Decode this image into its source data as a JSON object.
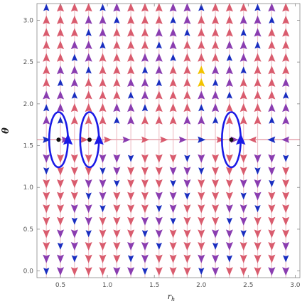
{
  "chart_data": {
    "type": "vector-field",
    "title": "",
    "xlabel": "r",
    "xlabel_subscript": "h",
    "ylabel": "θ",
    "xlim": [
      0.25,
      3.05
    ],
    "ylim": [
      -0.08,
      3.2
    ],
    "x_ticks": [
      0.5,
      1.0,
      1.5,
      2.0,
      2.5,
      3.0
    ],
    "x_tick_labels": [
      "0.5",
      "1.0",
      "1.5",
      "2.0",
      "2.5",
      "3.0"
    ],
    "y_ticks": [
      0.0,
      0.5,
      1.0,
      1.5,
      2.0,
      2.5,
      3.0
    ],
    "y_tick_labels": [
      "0.0",
      "0.5",
      "1.0",
      "1.5",
      "2.0",
      "2.5",
      "3.0"
    ],
    "equator_theta": 1.5708,
    "field_x_columns": [
      0.35,
      0.5,
      0.65,
      0.8,
      0.95,
      1.1,
      1.25,
      1.4,
      1.55,
      1.7,
      1.85,
      2.0,
      2.15,
      2.3,
      2.45,
      2.6,
      2.75,
      2.9
    ],
    "field_theta_rows": [
      0.0,
      0.15,
      0.3,
      0.45,
      0.6,
      0.75,
      0.9,
      1.05,
      1.2,
      1.35,
      1.8,
      1.95,
      2.1,
      2.25,
      2.4,
      2.55,
      2.7,
      2.85,
      3.0,
      3.15
    ],
    "field_colors": {
      "weak": "#d95c6e",
      "mid": "#8a3db0",
      "strong": "#1a2ec0",
      "highlight": "#f2c300"
    },
    "horizontal_line_arrows": {
      "theta": 1.5708,
      "x": [
        0.35,
        0.55,
        0.75,
        1.0,
        1.2,
        1.4,
        1.6,
        1.8,
        2.0,
        2.2,
        2.35,
        2.55,
        2.75,
        2.9
      ],
      "direction": [
        1,
        1,
        1,
        1,
        1,
        1,
        1,
        1,
        1,
        1,
        1,
        -1,
        -1,
        -1
      ]
    },
    "zero_points": [
      {
        "r": 0.48,
        "theta": 1.5708
      },
      {
        "r": 0.81,
        "theta": 1.5708
      },
      {
        "r": 2.32,
        "theta": 1.5708
      }
    ],
    "contours": [
      {
        "r": 0.48,
        "theta": 1.5708,
        "rx": 0.1,
        "ry": 0.33
      },
      {
        "r": 0.81,
        "theta": 1.5708,
        "rx": 0.1,
        "ry": 0.33
      },
      {
        "r": 2.32,
        "theta": 1.5708,
        "rx": 0.1,
        "ry": 0.33
      }
    ],
    "contour_color": "#1a1ae6",
    "point_color": "#111111"
  }
}
